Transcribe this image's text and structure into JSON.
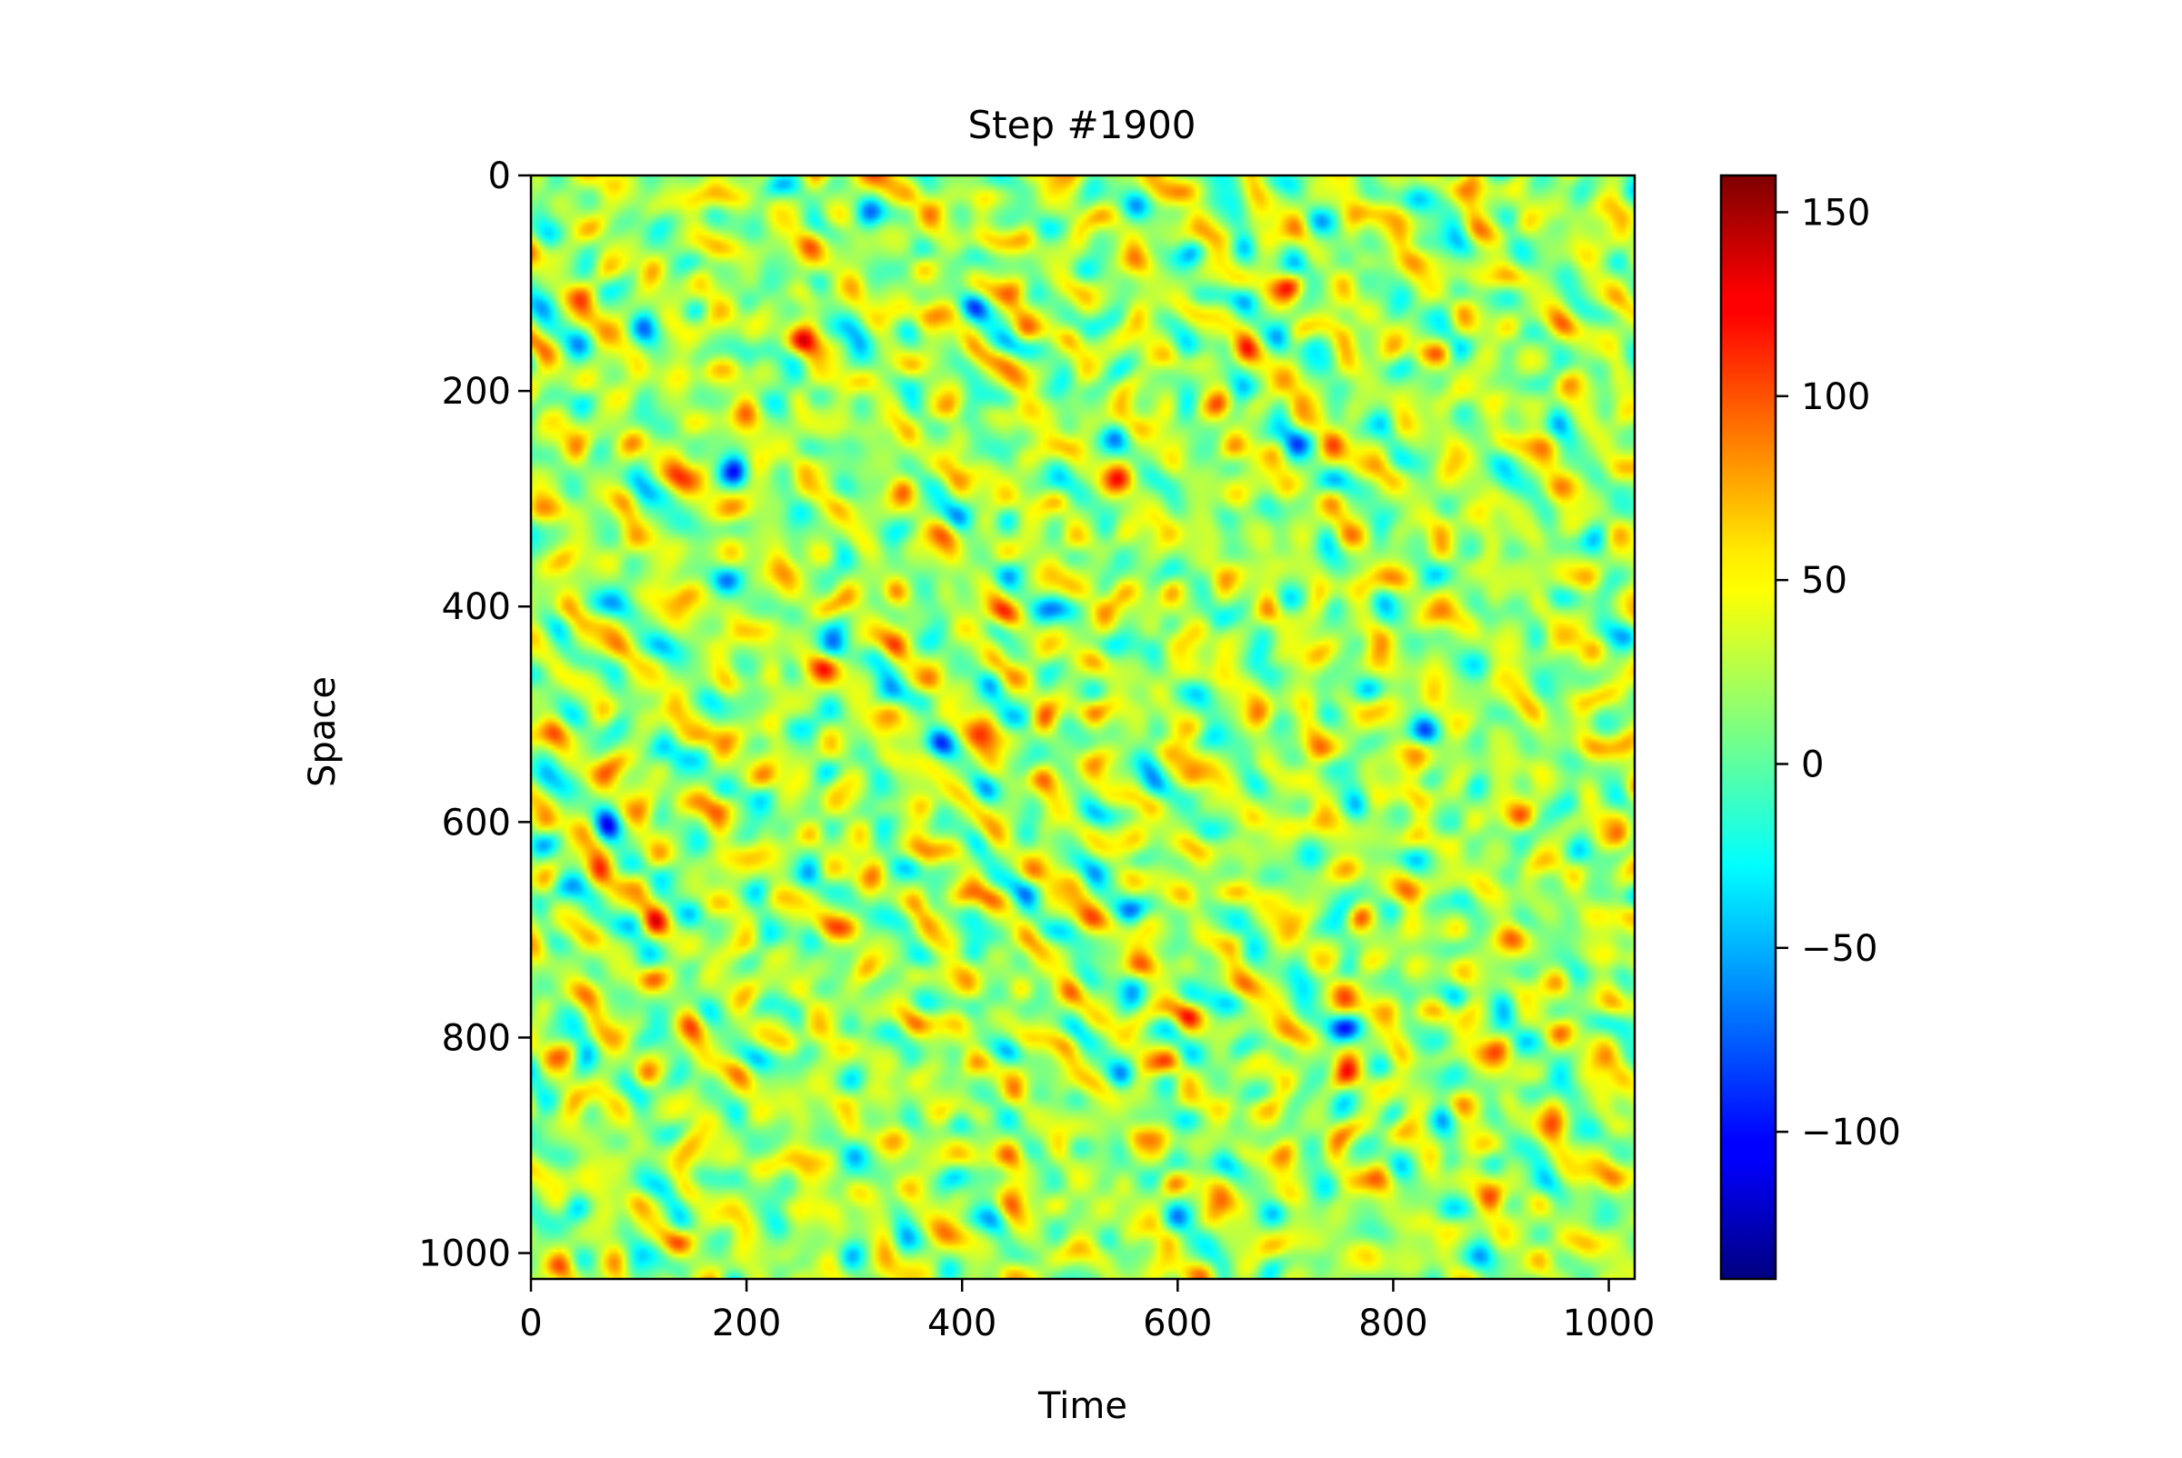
{
  "chart_data": {
    "type": "heatmap",
    "title": "Step #1900",
    "xlabel": "Time",
    "ylabel": "Space",
    "colormap": "jet",
    "x_ticks": [
      0,
      200,
      400,
      600,
      800,
      1000
    ],
    "y_ticks": [
      0,
      200,
      400,
      600,
      800,
      1000
    ],
    "x_tick_labels": [
      "0",
      "200",
      "400",
      "600",
      "800",
      "1000"
    ],
    "y_tick_labels": [
      "0",
      "200",
      "400",
      "600",
      "800",
      "1000"
    ],
    "xlim": [
      0,
      1024
    ],
    "ylim": [
      1024,
      0
    ],
    "y_axis_inverted": true,
    "colorbar": {
      "min": -140,
      "max": 160,
      "ticks": [
        150,
        100,
        50,
        0,
        -50,
        -100
      ],
      "tick_labels": [
        "150",
        "100",
        "50",
        "0",
        "−50",
        "−100"
      ]
    },
    "pattern": {
      "description": "diagonal stripes descending left-to-right (space increases with time), alternating negative (blue) and positive (red/yellow) bands over a noisy cyan-green background",
      "stripe_slope_space_per_time": 1.0,
      "stripe_spacing_space_units": 128,
      "value_range": [
        -140,
        160
      ]
    },
    "grid": false
  }
}
